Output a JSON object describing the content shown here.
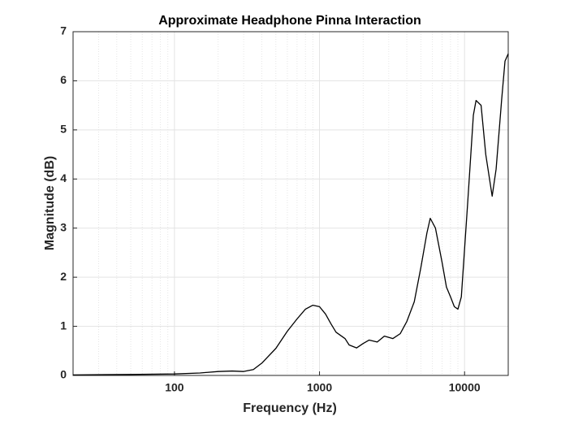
{
  "chart_data": {
    "type": "line",
    "title": "Approximate Headphone Pinna Interaction",
    "xlabel": "Frequency (Hz)",
    "ylabel": "Magnitude (dB)",
    "x": [
      20,
      50,
      100,
      150,
      200,
      250,
      300,
      350,
      400,
      500,
      600,
      700,
      800,
      900,
      1000,
      1100,
      1200,
      1300,
      1500,
      1600,
      1800,
      2000,
      2200,
      2500,
      2800,
      3200,
      3600,
      4000,
      4500,
      5000,
      5500,
      5800,
      6300,
      7000,
      7500,
      8000,
      8500,
      9000,
      9500,
      10500,
      11500,
      12000,
      13000,
      14000,
      15500,
      16500,
      18000,
      19000,
      20000
    ],
    "values": [
      0.01,
      0.02,
      0.03,
      0.05,
      0.08,
      0.09,
      0.08,
      0.12,
      0.25,
      0.55,
      0.9,
      1.15,
      1.35,
      1.43,
      1.4,
      1.25,
      1.05,
      0.88,
      0.75,
      0.62,
      0.56,
      0.65,
      0.72,
      0.68,
      0.8,
      0.75,
      0.85,
      1.1,
      1.5,
      2.2,
      2.9,
      3.2,
      3.0,
      2.3,
      1.8,
      1.6,
      1.4,
      1.35,
      1.6,
      3.5,
      5.3,
      5.6,
      5.5,
      4.5,
      3.65,
      4.2,
      5.6,
      6.4,
      6.55
    ],
    "color": "#000000",
    "xscale": "log",
    "xlim": [
      20,
      20000
    ],
    "xticks": [
      100,
      1000,
      10000
    ],
    "ylim": [
      0,
      7
    ],
    "yticks": [
      0,
      1,
      2,
      3,
      4,
      5,
      6,
      7
    ],
    "grid": true
  }
}
